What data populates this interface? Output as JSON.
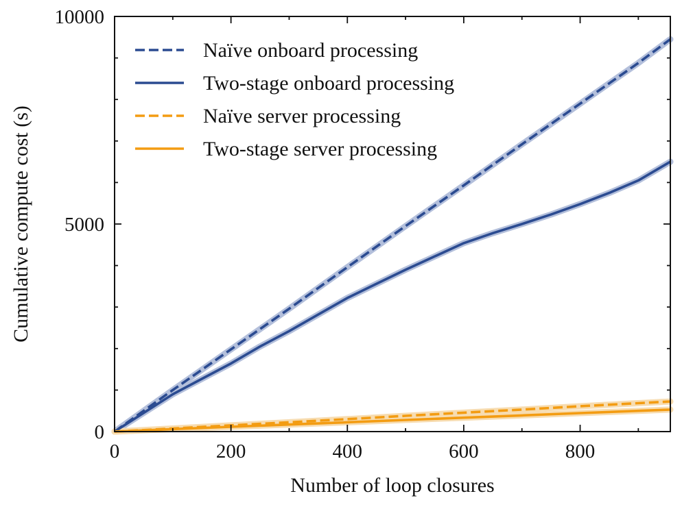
{
  "chart_data": {
    "type": "line",
    "title": "",
    "xlabel": "Number of loop closures",
    "ylabel": "Cumulative compute cost (s)",
    "xlim": [
      0,
      955
    ],
    "ylim": [
      0,
      10000
    ],
    "x_ticks": [
      0,
      200,
      400,
      600,
      800
    ],
    "x_tick_labels": [
      "0",
      "200",
      "400",
      "600",
      "800"
    ],
    "y_ticks": [
      0,
      5000,
      10000
    ],
    "y_tick_labels": [
      "0",
      "5000",
      "10000"
    ],
    "legend_position": "top-left",
    "series": [
      {
        "name": "Naïve onboard processing",
        "color": "#2b4b91",
        "band_color": "#b3bfdb",
        "style": "dashed",
        "x": [
          0,
          50,
          100,
          200,
          300,
          400,
          500,
          600,
          700,
          800,
          900,
          955
        ],
        "y": [
          0,
          500,
          1000,
          1980,
          2960,
          3960,
          4950,
          5930,
          6920,
          7900,
          8880,
          9450
        ]
      },
      {
        "name": "Two-stage onboard processing",
        "color": "#2b4b91",
        "band_color": "#b3bfdb",
        "style": "solid",
        "x": [
          0,
          50,
          100,
          150,
          200,
          250,
          300,
          350,
          400,
          450,
          500,
          550,
          600,
          650,
          700,
          750,
          800,
          850,
          900,
          955
        ],
        "y": [
          0,
          450,
          900,
          1270,
          1640,
          2050,
          2420,
          2820,
          3220,
          3560,
          3900,
          4220,
          4540,
          4780,
          5000,
          5230,
          5480,
          5750,
          6050,
          6500
        ]
      },
      {
        "name": "Naïve server processing",
        "color": "#f39c12",
        "band_color": "#f7dcb0",
        "style": "dashed",
        "x": [
          0,
          100,
          200,
          300,
          400,
          500,
          600,
          700,
          800,
          900,
          955
        ],
        "y": [
          0,
          75,
          150,
          225,
          300,
          380,
          455,
          530,
          610,
          685,
          725
        ]
      },
      {
        "name": "Two-stage server processing",
        "color": "#f39c12",
        "band_color": "#f7dcb0",
        "style": "solid",
        "x": [
          0,
          100,
          200,
          300,
          400,
          500,
          600,
          700,
          800,
          900,
          955
        ],
        "y": [
          0,
          60,
          115,
          170,
          225,
          280,
          335,
          390,
          445,
          500,
          530
        ]
      }
    ]
  }
}
